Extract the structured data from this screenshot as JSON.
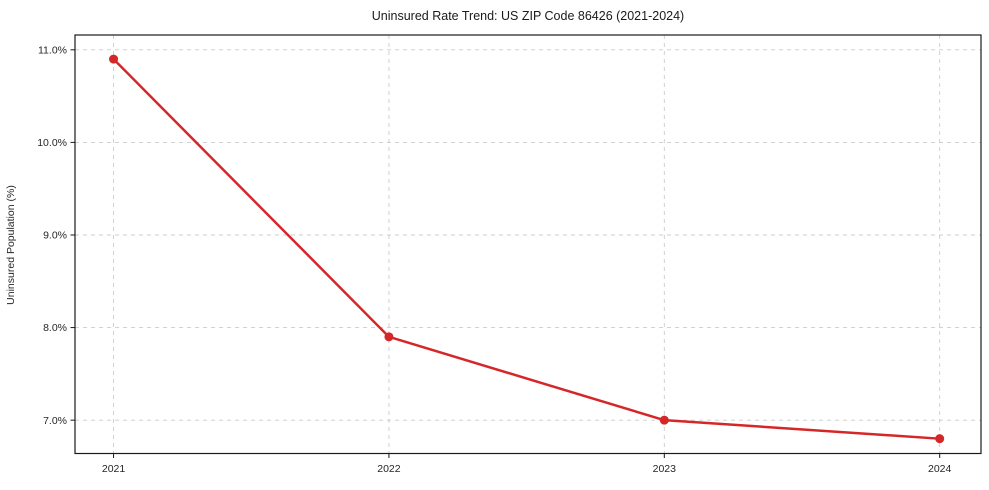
{
  "chart_data": {
    "type": "line",
    "title": "Uninsured Rate Trend: US ZIP Code 86426 (2021-2024)",
    "xlabel": "",
    "ylabel": "Uninsured Population (%)",
    "x": [
      2021,
      2022,
      2023,
      2024
    ],
    "values": [
      10.9,
      7.9,
      7.0,
      6.8
    ],
    "xticks": {
      "values": [
        2021,
        2022,
        2023,
        2024
      ],
      "labels": [
        "2021",
        "2022",
        "2023",
        "2024"
      ]
    },
    "yticks": {
      "values": [
        7.0,
        8.0,
        9.0,
        10.0,
        11.0
      ],
      "labels": [
        "7.0%",
        "8.0%",
        "9.0%",
        "10.0%",
        "11.0%"
      ]
    },
    "xlim": [
      2020.86,
      2024.15
    ],
    "ylim": [
      6.64,
      11.16
    ],
    "grid": true,
    "grid_style": "dashed",
    "legend": "none",
    "line_color": "#d62728",
    "line_width": 2.5,
    "marker": "circle",
    "marker_size": 4.5,
    "grid_color": "#cccccc",
    "axis_color": "#1a1a1a",
    "background": "#ffffff"
  }
}
